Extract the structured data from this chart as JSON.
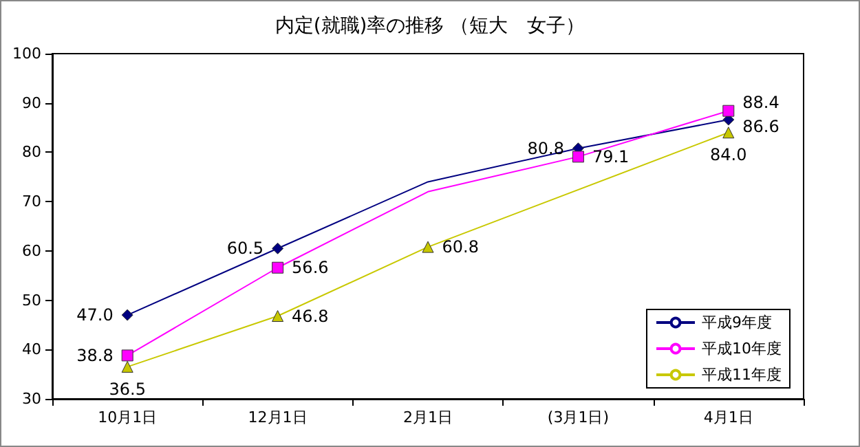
{
  "chart_data": {
    "type": "line",
    "title": "内定(就職)率の推移 （短大　女子）",
    "categories": [
      "10月1日",
      "12月1日",
      "2月1日",
      "(3月1日)",
      "4月1日"
    ],
    "series": [
      {
        "name": "平成9年度",
        "color": "#000080",
        "marker": "diamond",
        "values": [
          47.0,
          60.5,
          74,
          80.8,
          86.6
        ],
        "value_labels": [
          "47.0",
          "60.5",
          null,
          "80.8",
          "86.6"
        ]
      },
      {
        "name": "平成10年度",
        "color": "#ff00ff",
        "marker": "square",
        "values": [
          38.8,
          56.6,
          72,
          79.1,
          88.4
        ],
        "value_labels": [
          "38.8",
          "56.6",
          null,
          "79.1",
          "88.4"
        ]
      },
      {
        "name": "平成11年度",
        "color": "#c8c800",
        "marker": "triangle",
        "values": [
          36.5,
          46.8,
          60.8,
          null,
          84.0
        ],
        "value_labels": [
          "36.5",
          "46.8",
          "60.8",
          null,
          "84.0"
        ]
      }
    ],
    "ylim": [
      30,
      100
    ],
    "yticks": [
      30,
      40,
      50,
      60,
      70,
      80,
      90,
      100
    ],
    "grid": false,
    "legend": "bottom right"
  }
}
